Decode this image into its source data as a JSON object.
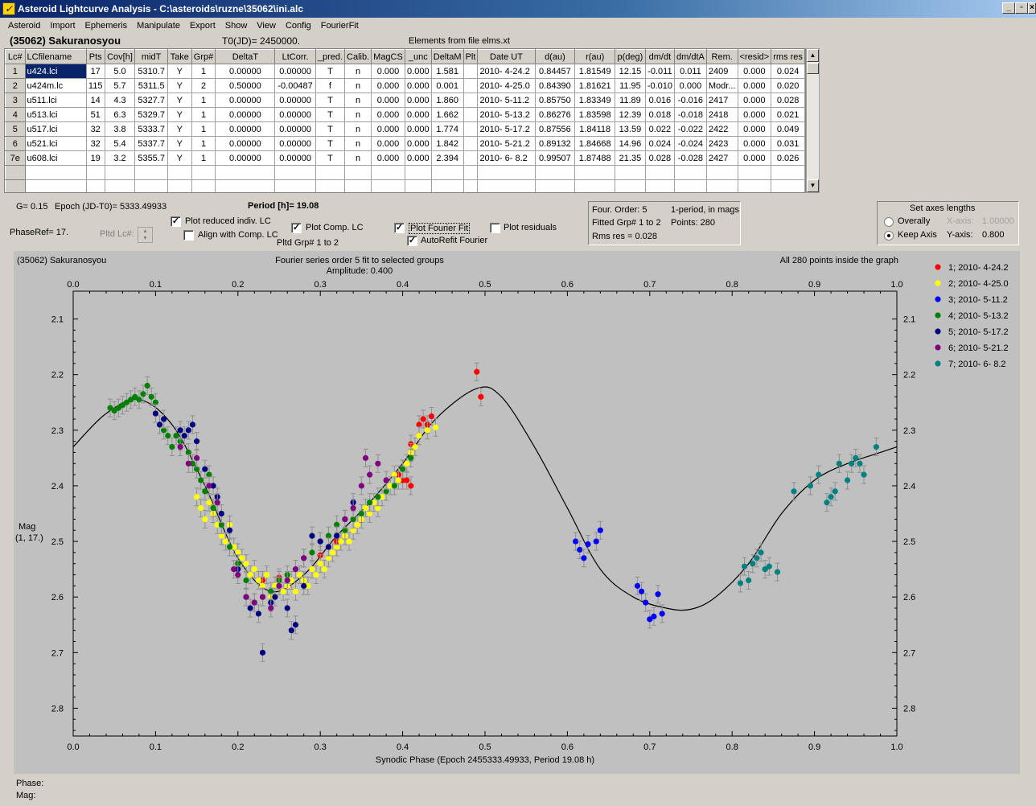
{
  "window": {
    "title": "Asteroid Lightcurve Analysis - C:\\asteroids\\ruzne\\35062\\ini.alc",
    "icon": "app-icon",
    "min": "_",
    "max": "▫",
    "close": "×"
  },
  "menu": [
    "Asteroid",
    "Import",
    "Ephemeris",
    "Manipulate",
    "Export",
    "Show",
    "View",
    "Config",
    "FourierFit"
  ],
  "header": {
    "object": "(35062) Sakuranosyou",
    "t0": "T0(JD)= 2450000.",
    "elements": "Elements from file elms.xt"
  },
  "table": {
    "columns": [
      "Lc#",
      "LCfilename",
      "Pts",
      "Cov[h]",
      "midT",
      "Take",
      "Grp#",
      "DeltaT",
      "LtCorr.",
      "_pred.",
      "Calib.",
      "MagCS",
      "_unc",
      "DeltaM",
      "Plt",
      "Date UT",
      "d(au)",
      "r(au)",
      "p(deg)",
      "dm/dt",
      "dm/dtA",
      "Rem.",
      "<resid>",
      "rms res"
    ],
    "rows": [
      [
        "1",
        "u424.lci",
        "17",
        "5.0",
        "5310.7",
        "Y",
        "1",
        "0.00000",
        "0.00000",
        "T",
        "n",
        "0.000",
        "0.000",
        "1.581",
        "",
        "2010- 4-24.2",
        "0.84457",
        "1.81549",
        "12.15",
        "-0.011",
        "0.011",
        "2409",
        "0.000",
        "0.024"
      ],
      [
        "2",
        "u424m.lc",
        "115",
        "5.7",
        "5311.5",
        "Y",
        "2",
        "0.50000",
        "-0.00487",
        "f",
        "n",
        "0.000",
        "0.000",
        "0.001",
        "",
        "2010- 4-25.0",
        "0.84390",
        "1.81621",
        "11.95",
        "-0.010",
        "0.000",
        "Modr...",
        "0.000",
        "0.020"
      ],
      [
        "3",
        "u511.lci",
        "14",
        "4.3",
        "5327.7",
        "Y",
        "1",
        "0.00000",
        "0.00000",
        "T",
        "n",
        "0.000",
        "0.000",
        "1.860",
        "",
        "2010- 5-11.2",
        "0.85750",
        "1.83349",
        "11.89",
        "0.016",
        "-0.016",
        "2417",
        "0.000",
        "0.028"
      ],
      [
        "4",
        "u513.lci",
        "51",
        "6.3",
        "5329.7",
        "Y",
        "1",
        "0.00000",
        "0.00000",
        "T",
        "n",
        "0.000",
        "0.000",
        "1.662",
        "",
        "2010- 5-13.2",
        "0.86276",
        "1.83598",
        "12.39",
        "0.018",
        "-0.018",
        "2418",
        "0.000",
        "0.021"
      ],
      [
        "5",
        "u517.lci",
        "32",
        "3.8",
        "5333.7",
        "Y",
        "1",
        "0.00000",
        "0.00000",
        "T",
        "n",
        "0.000",
        "0.000",
        "1.774",
        "",
        "2010- 5-17.2",
        "0.87556",
        "1.84118",
        "13.59",
        "0.022",
        "-0.022",
        "2422",
        "0.000",
        "0.049"
      ],
      [
        "6",
        "u521.lci",
        "32",
        "5.4",
        "5337.7",
        "Y",
        "1",
        "0.00000",
        "0.00000",
        "T",
        "n",
        "0.000",
        "0.000",
        "1.842",
        "",
        "2010- 5-21.2",
        "0.89132",
        "1.84668",
        "14.96",
        "0.024",
        "-0.024",
        "2423",
        "0.000",
        "0.031"
      ],
      [
        "7e",
        "u608.lci",
        "19",
        "3.2",
        "5355.7",
        "Y",
        "1",
        "0.00000",
        "0.00000",
        "T",
        "n",
        "0.000",
        "0.000",
        "2.394",
        "",
        "2010- 6- 8.2",
        "0.99507",
        "1.87488",
        "21.35",
        "0.028",
        "-0.028",
        "2427",
        "0.000",
        "0.026"
      ]
    ]
  },
  "controls": {
    "g": "G= 0.15",
    "epoch": "Epoch (JD-T0)= 5333.49933",
    "period": "Period [h]= 19.08",
    "phaseref": "PhaseRef= 17.",
    "pltd_lc": "Pltd Lc#:",
    "plot_reduced": "Plot reduced indiv. LC",
    "align_comp": "Align with Comp. LC",
    "plot_comp": "Plot Comp. LC",
    "pltd_grp": "Pltd Grp#  1   to   2",
    "plot_fourier": "Plot Fourier Fit",
    "autorefit": "AutoRefit Fourier",
    "plot_residuals": "Plot residuals",
    "checked": {
      "plot_reduced": true,
      "align_comp": false,
      "plot_comp": true,
      "plot_fourier": true,
      "autorefit": true,
      "plot_residuals": false
    }
  },
  "fourier": {
    "order": "Four. Order:  5",
    "mode": "1-period, in mags",
    "fitted": "Fitted Grp# 1 to 2",
    "points": "Points: 280",
    "rms": "Rms res     = 0.028"
  },
  "axes": {
    "title": "Set axes lengths",
    "overall": "Overally",
    "keep": "Keep Axis",
    "xaxis": "X-axis:",
    "xval": "1.00000",
    "yaxis": "Y-axis:",
    "yval": "0.800",
    "selected": "keep"
  },
  "status": {
    "phase": "Phase:",
    "mag": "Mag:"
  },
  "chart_data": {
    "type": "scatter",
    "title": "Fourier series order 5 fit to selected groups",
    "subtitle": "Amplitude: 0.400",
    "left_note": "(35062) Sakuranosyou",
    "right_note": "All 280 points inside the graph",
    "xlabel": "Synodic Phase (Epoch 2455333.49933, Period 19.08 h)",
    "ylabel": "Mag",
    "ylabel2": "(1, 17.)",
    "xlim": [
      0,
      1
    ],
    "ylim": [
      2.05,
      2.85
    ],
    "y_inverted": true,
    "xticks": [
      "0.0",
      "0.1",
      "0.2",
      "0.3",
      "0.4",
      "0.5",
      "0.6",
      "0.7",
      "0.8",
      "0.9",
      "1.0"
    ],
    "yticks": [
      "2.1",
      "2.2",
      "2.3",
      "2.4",
      "2.5",
      "2.6",
      "2.7",
      "2.8"
    ],
    "fit_curve": {
      "x": [
        0,
        0.04,
        0.08,
        0.12,
        0.16,
        0.2,
        0.24,
        0.28,
        0.32,
        0.36,
        0.4,
        0.44,
        0.49,
        0.52,
        0.56,
        0.6,
        0.64,
        0.68,
        0.72,
        0.75,
        0.78,
        0.82,
        0.86,
        0.9,
        0.94,
        0.98,
        1.0
      ],
      "y": [
        2.33,
        2.27,
        2.245,
        2.29,
        2.4,
        2.53,
        2.59,
        2.56,
        2.49,
        2.43,
        2.36,
        2.28,
        2.225,
        2.24,
        2.33,
        2.44,
        2.55,
        2.6,
        2.62,
        2.622,
        2.6,
        2.54,
        2.45,
        2.39,
        2.36,
        2.34,
        2.33
      ]
    },
    "series": [
      {
        "name": "1; 2010- 4-24.2",
        "color": "#ff0000",
        "points": [
          [
            0.42,
            2.29
          ],
          [
            0.425,
            2.28
          ],
          [
            0.43,
            2.29
          ],
          [
            0.435,
            2.275
          ],
          [
            0.49,
            2.195
          ],
          [
            0.495,
            2.24
          ],
          [
            0.395,
            2.38
          ],
          [
            0.405,
            2.39
          ],
          [
            0.41,
            2.4
          ],
          [
            0.4,
            2.39
          ],
          [
            0.41,
            2.325
          ],
          [
            0.3,
            2.525
          ],
          [
            0.32,
            2.5
          ],
          [
            0.23,
            2.57
          ],
          [
            0.25,
            2.565
          ]
        ]
      },
      {
        "name": "2; 2010- 4-25.0",
        "color": "#ffff00",
        "points": [
          [
            0.15,
            2.42
          ],
          [
            0.155,
            2.44
          ],
          [
            0.16,
            2.46
          ],
          [
            0.165,
            2.43
          ],
          [
            0.17,
            2.45
          ],
          [
            0.175,
            2.47
          ],
          [
            0.18,
            2.49
          ],
          [
            0.185,
            2.5
          ],
          [
            0.19,
            2.47
          ],
          [
            0.195,
            2.51
          ],
          [
            0.2,
            2.52
          ],
          [
            0.205,
            2.53
          ],
          [
            0.21,
            2.54
          ],
          [
            0.215,
            2.56
          ],
          [
            0.22,
            2.55
          ],
          [
            0.225,
            2.57
          ],
          [
            0.23,
            2.58
          ],
          [
            0.235,
            2.56
          ],
          [
            0.24,
            2.6
          ],
          [
            0.245,
            2.58
          ],
          [
            0.25,
            2.57
          ],
          [
            0.255,
            2.59
          ],
          [
            0.26,
            2.58
          ],
          [
            0.265,
            2.57
          ],
          [
            0.27,
            2.59
          ],
          [
            0.275,
            2.56
          ],
          [
            0.28,
            2.57
          ],
          [
            0.285,
            2.58
          ],
          [
            0.29,
            2.55
          ],
          [
            0.295,
            2.56
          ],
          [
            0.3,
            2.54
          ],
          [
            0.305,
            2.55
          ],
          [
            0.31,
            2.53
          ],
          [
            0.315,
            2.52
          ],
          [
            0.32,
            2.51
          ],
          [
            0.325,
            2.5
          ],
          [
            0.33,
            2.49
          ],
          [
            0.335,
            2.5
          ],
          [
            0.34,
            2.48
          ],
          [
            0.345,
            2.47
          ],
          [
            0.35,
            2.46
          ],
          [
            0.355,
            2.44
          ],
          [
            0.36,
            2.45
          ],
          [
            0.365,
            2.43
          ],
          [
            0.37,
            2.44
          ],
          [
            0.375,
            2.42
          ],
          [
            0.38,
            2.41
          ],
          [
            0.385,
            2.4
          ],
          [
            0.39,
            2.38
          ],
          [
            0.395,
            2.39
          ],
          [
            0.4,
            2.37
          ],
          [
            0.405,
            2.36
          ],
          [
            0.41,
            2.34
          ],
          [
            0.415,
            2.33
          ],
          [
            0.42,
            2.31
          ],
          [
            0.43,
            2.3
          ],
          [
            0.44,
            2.295
          ]
        ]
      },
      {
        "name": "3; 2010- 5-11.2",
        "color": "#0000ff",
        "points": [
          [
            0.61,
            2.5
          ],
          [
            0.615,
            2.515
          ],
          [
            0.62,
            2.53
          ],
          [
            0.625,
            2.505
          ],
          [
            0.635,
            2.5
          ],
          [
            0.64,
            2.48
          ],
          [
            0.685,
            2.58
          ],
          [
            0.69,
            2.59
          ],
          [
            0.695,
            2.61
          ],
          [
            0.7,
            2.64
          ],
          [
            0.705,
            2.635
          ],
          [
            0.71,
            2.595
          ],
          [
            0.715,
            2.63
          ]
        ]
      },
      {
        "name": "4; 2010- 5-13.2",
        "color": "#008000",
        "points": [
          [
            0.045,
            2.26
          ],
          [
            0.05,
            2.265
          ],
          [
            0.055,
            2.26
          ],
          [
            0.06,
            2.255
          ],
          [
            0.065,
            2.25
          ],
          [
            0.07,
            2.245
          ],
          [
            0.075,
            2.24
          ],
          [
            0.08,
            2.245
          ],
          [
            0.085,
            2.235
          ],
          [
            0.09,
            2.22
          ],
          [
            0.095,
            2.24
          ],
          [
            0.1,
            2.25
          ],
          [
            0.11,
            2.3
          ],
          [
            0.115,
            2.31
          ],
          [
            0.12,
            2.33
          ],
          [
            0.125,
            2.31
          ],
          [
            0.13,
            2.32
          ],
          [
            0.14,
            2.34
          ],
          [
            0.145,
            2.36
          ],
          [
            0.15,
            2.37
          ],
          [
            0.155,
            2.39
          ],
          [
            0.16,
            2.41
          ],
          [
            0.165,
            2.38
          ],
          [
            0.17,
            2.44
          ],
          [
            0.18,
            2.47
          ],
          [
            0.19,
            2.51
          ],
          [
            0.2,
            2.54
          ],
          [
            0.21,
            2.57
          ],
          [
            0.22,
            2.61
          ],
          [
            0.23,
            2.6
          ],
          [
            0.24,
            2.59
          ],
          [
            0.25,
            2.57
          ],
          [
            0.26,
            2.56
          ],
          [
            0.27,
            2.55
          ],
          [
            0.28,
            2.53
          ],
          [
            0.29,
            2.52
          ],
          [
            0.3,
            2.5
          ],
          [
            0.31,
            2.49
          ],
          [
            0.32,
            2.47
          ],
          [
            0.33,
            2.48
          ],
          [
            0.34,
            2.46
          ],
          [
            0.35,
            2.45
          ],
          [
            0.36,
            2.43
          ],
          [
            0.37,
            2.42
          ],
          [
            0.38,
            2.41
          ],
          [
            0.39,
            2.4
          ],
          [
            0.4,
            2.37
          ],
          [
            0.41,
            2.35
          ]
        ]
      },
      {
        "name": "5; 2010- 5-17.2",
        "color": "#000080",
        "points": [
          [
            0.1,
            2.27
          ],
          [
            0.105,
            2.29
          ],
          [
            0.11,
            2.28
          ],
          [
            0.13,
            2.3
          ],
          [
            0.135,
            2.31
          ],
          [
            0.14,
            2.3
          ],
          [
            0.145,
            2.29
          ],
          [
            0.15,
            2.32
          ],
          [
            0.16,
            2.37
          ],
          [
            0.17,
            2.4
          ],
          [
            0.175,
            2.42
          ],
          [
            0.18,
            2.45
          ],
          [
            0.19,
            2.48
          ],
          [
            0.2,
            2.55
          ],
          [
            0.21,
            2.6
          ],
          [
            0.215,
            2.62
          ],
          [
            0.225,
            2.63
          ],
          [
            0.23,
            2.7
          ],
          [
            0.24,
            2.61
          ],
          [
            0.245,
            2.6
          ],
          [
            0.26,
            2.62
          ],
          [
            0.265,
            2.66
          ],
          [
            0.27,
            2.65
          ],
          [
            0.28,
            2.58
          ],
          [
            0.29,
            2.49
          ],
          [
            0.3,
            2.5
          ],
          [
            0.31,
            2.51
          ],
          [
            0.32,
            2.49
          ],
          [
            0.33,
            2.46
          ],
          [
            0.34,
            2.43
          ]
        ]
      },
      {
        "name": "6; 2010- 5-21.2",
        "color": "#800080",
        "points": [
          [
            0.13,
            2.33
          ],
          [
            0.14,
            2.36
          ],
          [
            0.15,
            2.35
          ],
          [
            0.165,
            2.4
          ],
          [
            0.175,
            2.43
          ],
          [
            0.195,
            2.55
          ],
          [
            0.2,
            2.56
          ],
          [
            0.21,
            2.6
          ],
          [
            0.22,
            2.61
          ],
          [
            0.23,
            2.6
          ],
          [
            0.24,
            2.62
          ],
          [
            0.25,
            2.58
          ],
          [
            0.26,
            2.57
          ],
          [
            0.27,
            2.55
          ],
          [
            0.28,
            2.53
          ],
          [
            0.33,
            2.46
          ],
          [
            0.34,
            2.44
          ],
          [
            0.35,
            2.4
          ],
          [
            0.355,
            2.35
          ],
          [
            0.36,
            2.38
          ],
          [
            0.37,
            2.36
          ],
          [
            0.38,
            2.39
          ]
        ]
      },
      {
        "name": "7; 2010- 6- 8.2",
        "color": "#008080",
        "points": [
          [
            0.81,
            2.575
          ],
          [
            0.815,
            2.545
          ],
          [
            0.82,
            2.57
          ],
          [
            0.825,
            2.54
          ],
          [
            0.83,
            2.53
          ],
          [
            0.835,
            2.52
          ],
          [
            0.84,
            2.55
          ],
          [
            0.845,
            2.545
          ],
          [
            0.855,
            2.555
          ],
          [
            0.875,
            2.41
          ],
          [
            0.895,
            2.4
          ],
          [
            0.905,
            2.38
          ],
          [
            0.915,
            2.43
          ],
          [
            0.92,
            2.42
          ],
          [
            0.925,
            2.41
          ],
          [
            0.93,
            2.36
          ],
          [
            0.94,
            2.39
          ],
          [
            0.945,
            2.36
          ],
          [
            0.95,
            2.35
          ],
          [
            0.955,
            2.36
          ],
          [
            0.96,
            2.38
          ],
          [
            0.975,
            2.33
          ]
        ]
      }
    ]
  }
}
